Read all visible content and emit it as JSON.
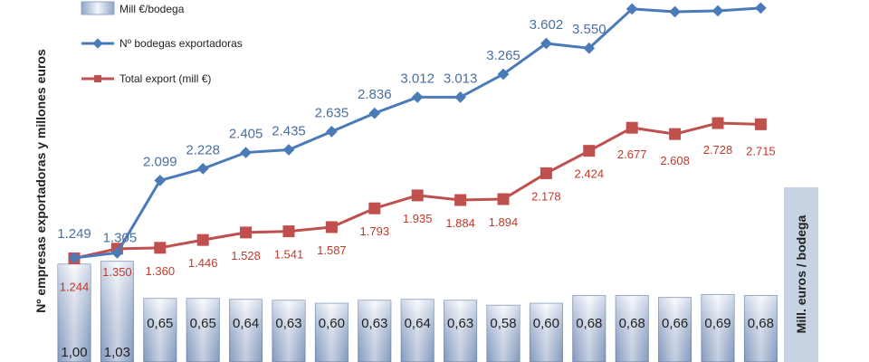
{
  "chart_data": {
    "type": "bar+line",
    "categories": [
      "",
      "",
      "",
      "",
      "",
      "",
      "",
      "",
      "",
      "",
      "",
      "",
      "",
      "",
      "",
      "",
      ""
    ],
    "y_axis_title": "Nº empresas exportadoras y millones euros",
    "y2_axis_title": "Mill. euros / bodega",
    "series": [
      {
        "name": "Mill €/bodega",
        "type": "bar",
        "axis": "right",
        "values": [
          1.0,
          1.03,
          0.65,
          0.65,
          0.64,
          0.63,
          0.6,
          0.63,
          0.64,
          0.63,
          0.58,
          0.6,
          0.68,
          0.68,
          0.66,
          0.69,
          0.68
        ],
        "labels": [
          "1,00",
          "1,03",
          "0,65",
          "0,65",
          "0,64",
          "0,63",
          "0,60",
          "0,63",
          "0,64",
          "0,63",
          "0,58",
          "0,60",
          "0,68",
          "0,68",
          "0,66",
          "0,69",
          "0,68"
        ]
      },
      {
        "name": "Nº bodegas exportadoras",
        "type": "line",
        "axis": "left",
        "values": [
          1249,
          1305,
          2099,
          2228,
          2405,
          2435,
          2635,
          2836,
          3012,
          3013,
          3265,
          3602,
          3550,
          3980,
          3950,
          3960,
          3990
        ],
        "labels": [
          "1.249",
          "1.305",
          "2.099",
          "2.228",
          "2.405",
          "2.435",
          "2.635",
          "2.836",
          "3.012",
          "3.013",
          "3.265",
          "3.602",
          "3.550",
          "",
          "",
          "",
          ""
        ]
      },
      {
        "name": "Total export (mill €)",
        "type": "line",
        "axis": "left",
        "values": [
          1244,
          1350,
          1360,
          1446,
          1528,
          1541,
          1587,
          1793,
          1935,
          1884,
          1894,
          2178,
          2424,
          2677,
          2608,
          2728,
          2715
        ],
        "labels": [
          "1.244",
          "1.350",
          "1.360",
          "1.446",
          "1.528",
          "1.541",
          "1.587",
          "1.793",
          "1.935",
          "1.884",
          "1.894",
          "2.178",
          "2.424",
          "2.677",
          "2.608",
          "2.728",
          "2.715"
        ]
      }
    ],
    "legend": [
      "Mill €/bodega",
      "Nº bodegas exportadoras",
      "Total export (mill €)"
    ],
    "legend_position": "top-left",
    "colors": {
      "bars": "#c9d3e6",
      "bodegas": "#4a7ab8",
      "export": "#c0504d"
    },
    "grid": false
  }
}
